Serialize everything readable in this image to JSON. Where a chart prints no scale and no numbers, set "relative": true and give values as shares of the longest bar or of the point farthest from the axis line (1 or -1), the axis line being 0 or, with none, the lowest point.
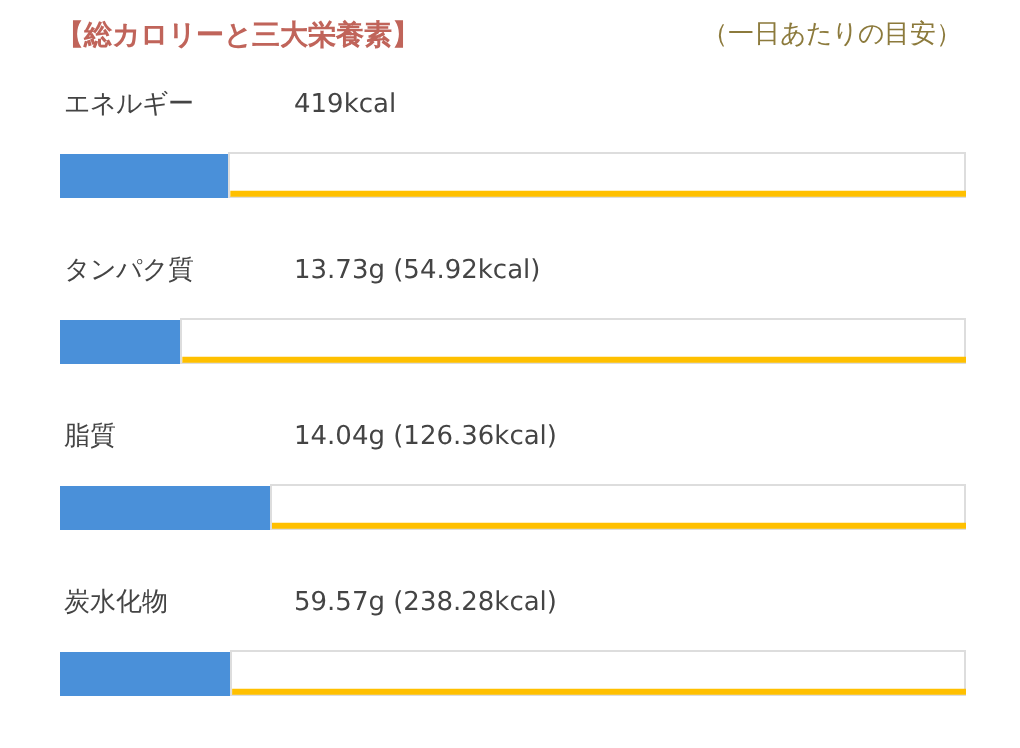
{
  "chart_data": {
    "type": "bar",
    "orientation": "horizontal",
    "relative": true,
    "stacked": true,
    "title": "【総カロリーと三大栄養素】",
    "subtitle": "（一日あたりの目安）",
    "categories": [
      "エネルギー",
      "タンパク質",
      "脂質",
      "炭水化物"
    ],
    "series": [
      {
        "color": "#4a90d9",
        "values": [
          0.188,
          0.135,
          0.234,
          0.19
        ]
      },
      {
        "color": "#ffffff",
        "values": [
          0.812,
          0.865,
          0.766,
          0.81
        ]
      }
    ],
    "annotations": [
      "419kcal",
      "13.73g (54.92kcal)",
      "14.04g (126.36kcal)",
      "59.57g (238.28kcal)"
    ]
  }
}
